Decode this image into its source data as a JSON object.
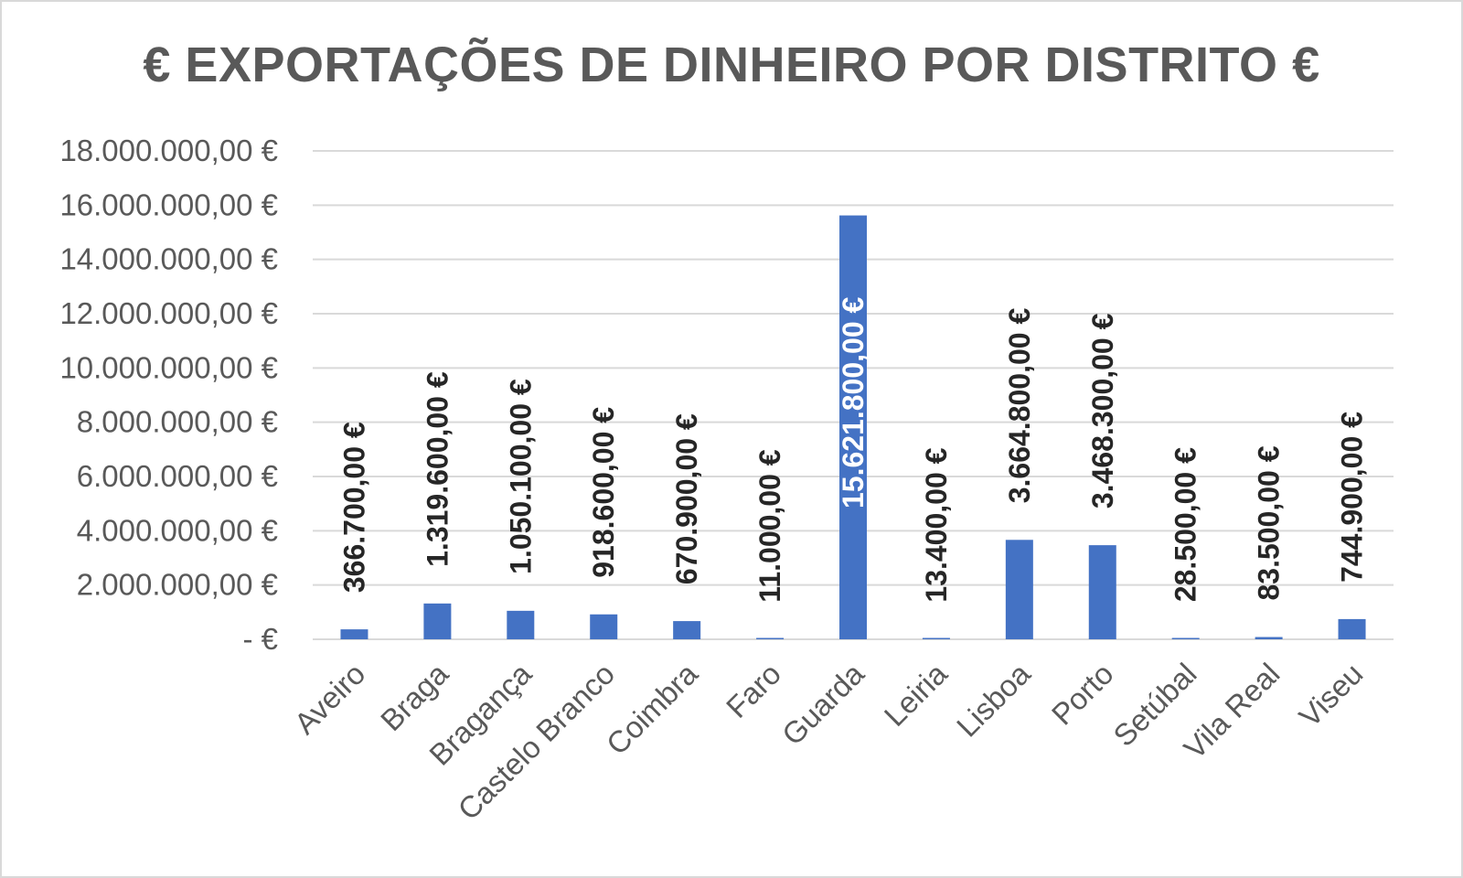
{
  "chart_data": {
    "type": "bar",
    "title": "€ EXPORTAÇÕES DE DINHEIRO POR DISTRITO €",
    "xlabel": "",
    "ylabel": "",
    "categories": [
      "Aveiro",
      "Braga",
      "Bragança",
      "Castelo Branco",
      "Coimbra",
      "Faro",
      "Guarda",
      "Leiria",
      "Lisboa",
      "Porto",
      "Setúbal",
      "Vila Real",
      "Viseu"
    ],
    "values": [
      366700,
      1319600,
      1050100,
      918600,
      670900,
      11000,
      15621800,
      13400,
      3664800,
      3468300,
      28500,
      83500,
      744900
    ],
    "data_labels": [
      "366.700,00 €",
      "1.319.600,00 €",
      "1.050.100,00 €",
      "918.600,00 €",
      "670.900,00 €",
      "11.000,00 €",
      "15.621.800,00 €",
      "13.400,00 €",
      "3.664.800,00 €",
      "3.468.300,00 €",
      "28.500,00 €",
      "83.500,00 €",
      "744.900,00 €"
    ],
    "y_ticks": [
      0,
      2000000,
      4000000,
      6000000,
      8000000,
      10000000,
      12000000,
      14000000,
      16000000,
      18000000
    ],
    "y_tick_labels": [
      "-   €",
      "2.000.000,00 €",
      "4.000.000,00 €",
      "6.000.000,00 €",
      "8.000.000,00 €",
      "10.000.000,00 €",
      "12.000.000,00 €",
      "14.000.000,00 €",
      "16.000.000,00 €",
      "18.000.000,00 €"
    ],
    "ylim": [
      0,
      18000000
    ],
    "grid": true,
    "legend": "none",
    "colors": {
      "bar": "#4472c4",
      "gridline": "#d9d9d9",
      "text": "#595959",
      "data_label": "#262626",
      "data_label_inside": "#ffffff"
    }
  }
}
